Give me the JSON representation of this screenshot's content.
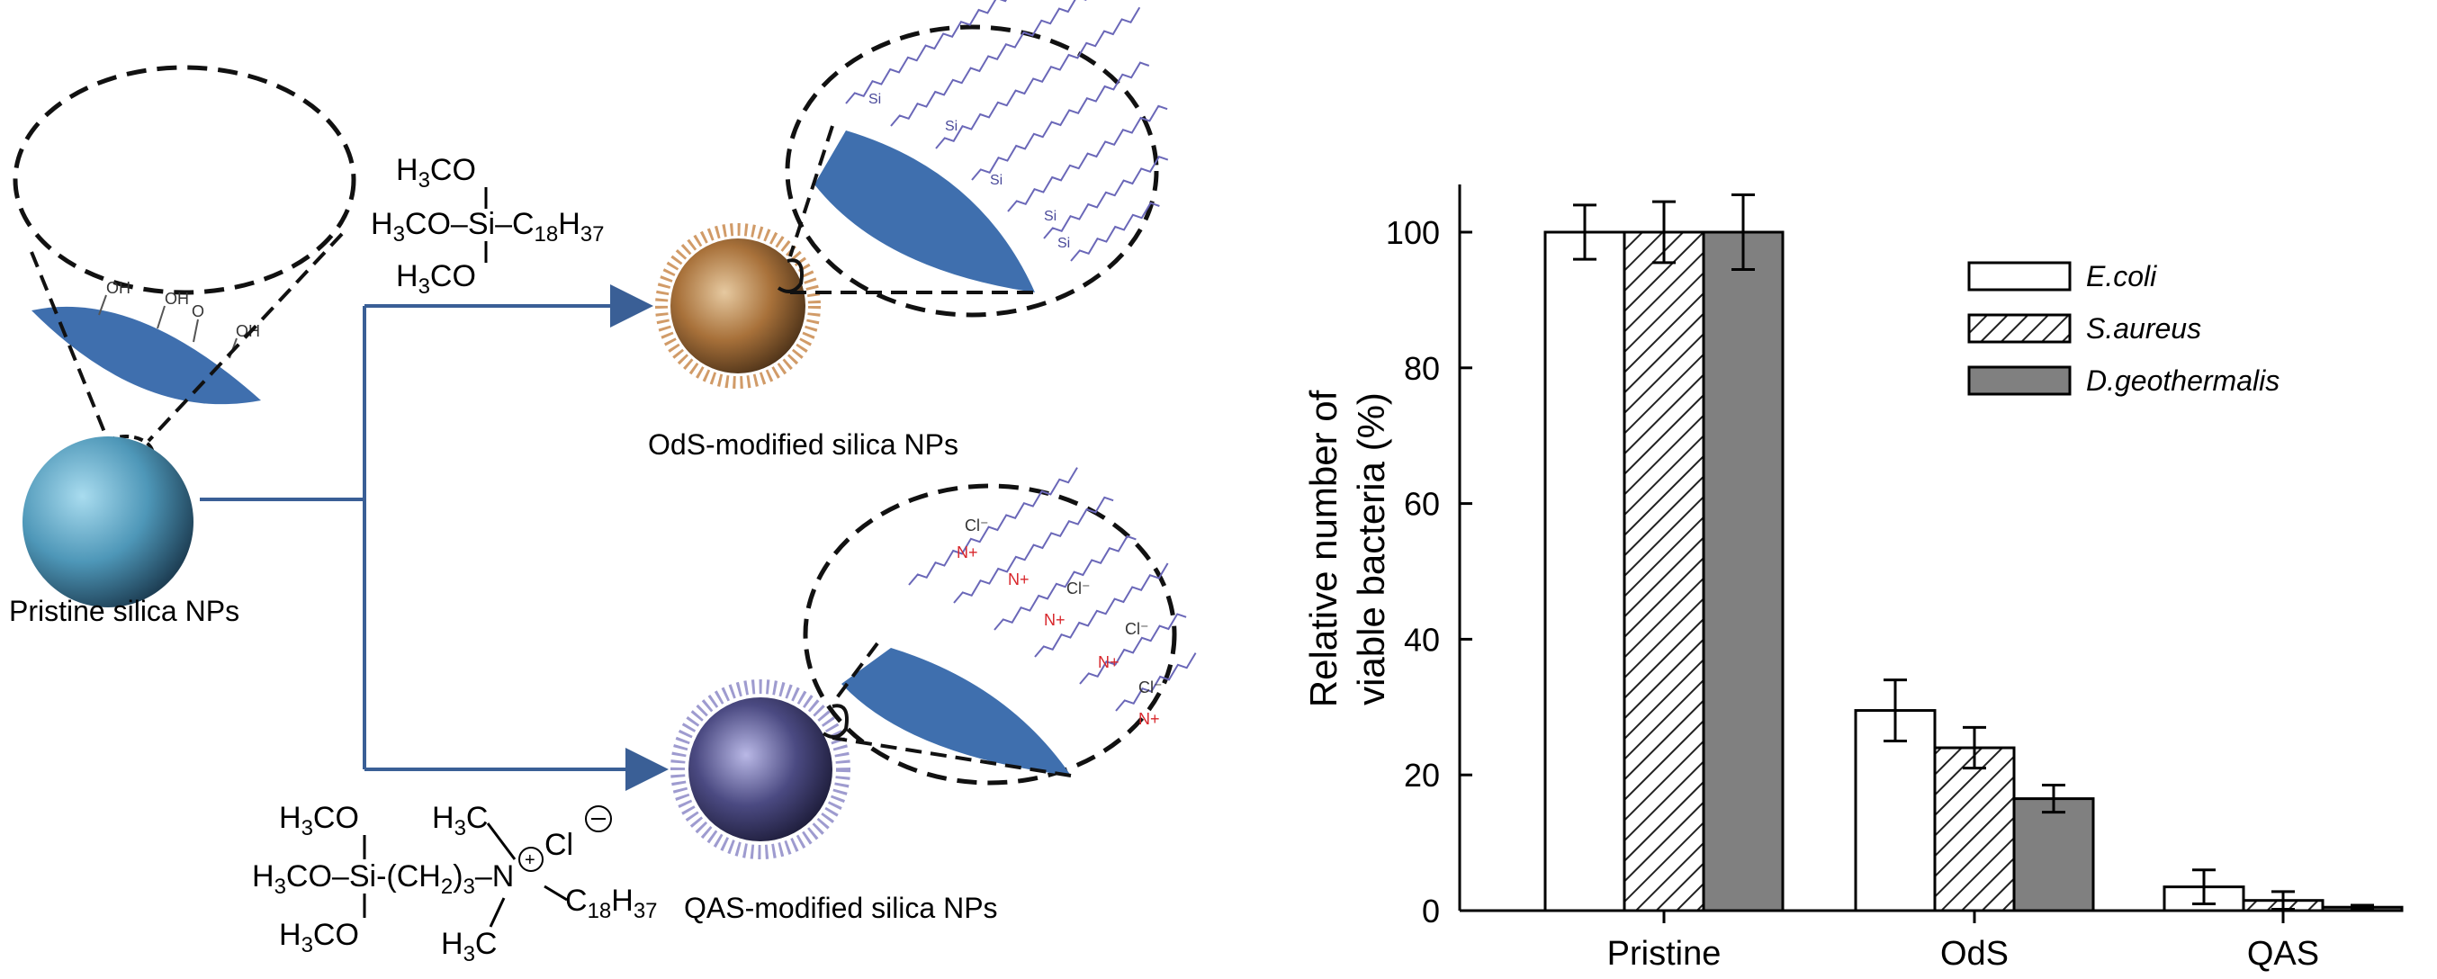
{
  "scheme": {
    "pristine_label": "Pristine silica NPs",
    "ods_label": "OdS-modified silica NPs",
    "qas_label": "QAS-modified silica NPs",
    "surface_groups": [
      "OH",
      "OH",
      "O",
      "OH"
    ],
    "ods_reagent": {
      "line1": "H3CO",
      "line2": "H3CO–Si–C18H37",
      "line3": "H3CO"
    },
    "qas_reagent": {
      "line1": "H3CO",
      "line2": "H3CO–Si-(CH2)3–N–C18H37",
      "line3": "H3CO",
      "methyl_top": "H3C",
      "methyl_bottom": "H3C",
      "counter_ion": "Cl"
    },
    "si_atom": "Si",
    "o_atom": "O",
    "n_plus": "N+",
    "cl_minus": "Cl⁻",
    "colors": {
      "arrow": "#3a5f96",
      "surface": "#3f6fae",
      "chain": "#6a67b8",
      "nitrogen": "#d8262b",
      "ods_sphere": "#a8713a",
      "qas_sphere": "#4b4a82",
      "pristine_sphere": "#4e97b8"
    }
  },
  "chart_data": {
    "type": "bar",
    "categories": [
      "Pristine",
      "OdS",
      "QAS"
    ],
    "series": [
      {
        "name": "E.coli",
        "values": [
          100,
          29.5,
          3.5
        ],
        "errors": [
          4,
          4.5,
          2.5
        ],
        "fill": "#ffffff",
        "hatch": false
      },
      {
        "name": "S.aureus",
        "values": [
          100,
          24,
          1.5
        ],
        "errors": [
          4.5,
          3,
          1.3
        ],
        "fill": "#ffffff",
        "hatch": true
      },
      {
        "name": "D.geothermalis",
        "values": [
          100,
          16.5,
          0.5
        ],
        "errors": [
          5.5,
          2,
          0.3
        ],
        "fill": "#808080",
        "hatch": false
      }
    ],
    "ylabel_line1": "Relative number of",
    "ylabel_line2": "viable bacteria (%)",
    "ylim": [
      0,
      108
    ],
    "yticks": [
      0,
      20,
      40,
      60,
      80,
      100
    ],
    "legend_position": "top-right"
  }
}
